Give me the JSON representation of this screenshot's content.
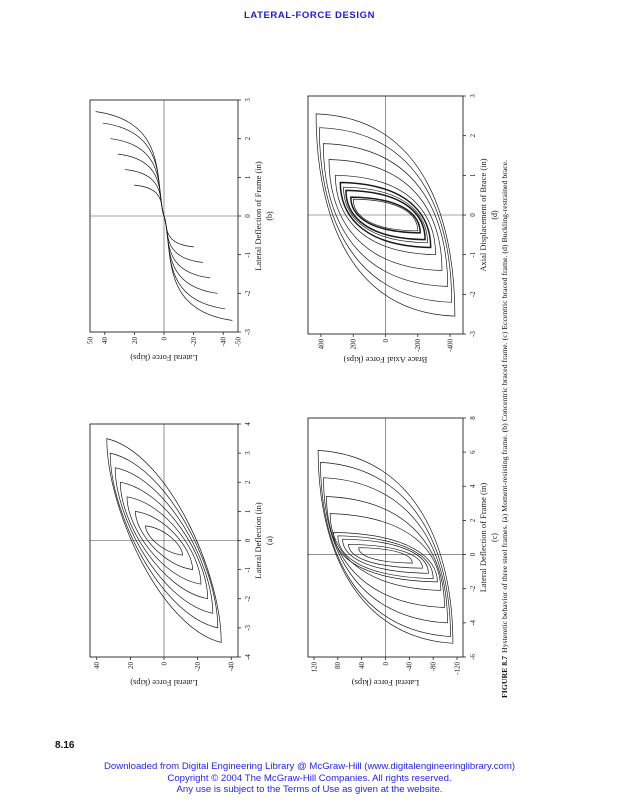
{
  "page": {
    "header": "LATERAL-FORCE DESIGN",
    "page_number": "8.16",
    "footer": {
      "line1": "Downloaded from Digital Engineering Library @ McGraw-Hill (www.digitalengineeringlibrary.com)",
      "line2": "Copyright © 2004 The McGraw-Hill Companies. All rights reserved.",
      "line3": "Any use is subject to the Terms of Use as given at the website."
    }
  },
  "figure": {
    "caption_label": "FIGURE 8.7",
    "caption_text": "Hysteretic behavior of three steel frames. (a) Moment-resisting frame. (b) Concentric braced frame. (c) Eccentric braced frame. (d) Buckling-restrained brace.",
    "orientation": "rotated 90 degrees counterclockwise on page",
    "accent_color": "#1d1dcf",
    "ink_color": "#1a1a1a"
  },
  "chart_data": [
    {
      "panel": "(a)",
      "name": "Moment-resisting frame",
      "type": "line",
      "xlabel": "Lateral Deflection (in)",
      "ylabel": "Lateral Force (kips)",
      "xlim": [
        -4,
        4
      ],
      "ylim": [
        -44,
        44
      ],
      "xticks": [
        -4,
        -3,
        -2,
        -1,
        0,
        1,
        2,
        3,
        4
      ],
      "yticks": [
        40,
        20,
        0,
        -20,
        -40
      ],
      "axis_end_labels": [],
      "grid": false,
      "legend": false,
      "loop_style": "round",
      "cycles_xneg_xpos_peak": [
        [
          -0.5,
          0.5,
          11
        ],
        [
          -1,
          1,
          17
        ],
        [
          -1.5,
          1.5,
          22
        ],
        [
          -2,
          2,
          26
        ],
        [
          -2.5,
          2.5,
          29
        ],
        [
          -3,
          3,
          32
        ],
        [
          -3.5,
          3.5,
          34
        ]
      ]
    },
    {
      "panel": "(b)",
      "name": "Concentric braced frame",
      "type": "line",
      "xlabel": "Lateral Deflection of Frame (in)",
      "ylabel": "Lateral Force (kips)",
      "xlim": [
        -3,
        3
      ],
      "ylim": [
        -50,
        50
      ],
      "xticks": [
        -3,
        -2,
        -1,
        0,
        1,
        2,
        3
      ],
      "yticks": [
        40,
        20,
        0,
        -20,
        -40
      ],
      "axis_end_labels": [
        "50",
        "-50"
      ],
      "grid": false,
      "legend": false,
      "loop_style": "pinched",
      "cycles_xneg_xpos_peak": [
        [
          -0.8,
          0.8,
          20
        ],
        [
          -1.2,
          1.2,
          26
        ],
        [
          -1.6,
          1.6,
          31
        ],
        [
          -2,
          2,
          36
        ],
        [
          -2.4,
          2.4,
          41
        ],
        [
          -2.7,
          2.7,
          46
        ]
      ]
    },
    {
      "panel": "(c)",
      "name": "Eccentric braced frame",
      "type": "line",
      "xlabel": "Lateral Deflection of Frame (in)",
      "ylabel": "Lateral Force (kips)",
      "xlim": [
        -6,
        8
      ],
      "ylim": [
        -130,
        130
      ],
      "xticks": [
        -6,
        -4,
        -2,
        0,
        2,
        4,
        6,
        8
      ],
      "yticks": [
        120,
        80,
        40,
        0,
        -40,
        -80,
        -120
      ],
      "axis_end_labels": [],
      "grid": false,
      "legend": false,
      "loop_style": "flat",
      "cycles_xneg_xpos_peak": [
        [
          -0.5,
          0.4,
          45
        ],
        [
          -0.8,
          0.6,
          62
        ],
        [
          -1.1,
          0.9,
          72
        ],
        [
          -1.4,
          1.1,
          80
        ],
        [
          -1.6,
          1.3,
          87
        ],
        [
          -2.1,
          2.4,
          93
        ],
        [
          -3.1,
          3.4,
          99
        ],
        [
          -4,
          4.5,
          104
        ],
        [
          -4.8,
          5.4,
          109
        ],
        [
          -5.2,
          6.1,
          113
        ]
      ]
    },
    {
      "panel": "(d)",
      "name": "Buckling-restrained brace",
      "type": "line",
      "xlabel": "Axial Displacement of Brace (in)",
      "ylabel": "Brace Axial Force (kips)",
      "xlim": [
        -3,
        3
      ],
      "ylim": [
        -480,
        480
      ],
      "xticks": [
        -3,
        -2,
        -1,
        0,
        1,
        2,
        3
      ],
      "yticks": [
        400,
        200,
        0,
        -200,
        -400
      ],
      "axis_end_labels": [],
      "grid": false,
      "legend": false,
      "loop_style": "flatwide",
      "cycles_xneg_xpos_peak": [
        [
          -0.4,
          0.4,
          200
        ],
        [
          -0.7,
          0.7,
          260
        ],
        [
          -1,
          1,
          310
        ],
        [
          -1.4,
          1.4,
          350
        ],
        [
          -1.8,
          1.8,
          385
        ],
        [
          -2.2,
          2.2,
          410
        ],
        [
          -2.55,
          2.55,
          430
        ]
      ],
      "dark_cycles": [
        [
          -0.45,
          0.45,
          215
        ],
        [
          -0.62,
          0.62,
          245
        ],
        [
          -0.82,
          0.82,
          280
        ]
      ]
    }
  ]
}
